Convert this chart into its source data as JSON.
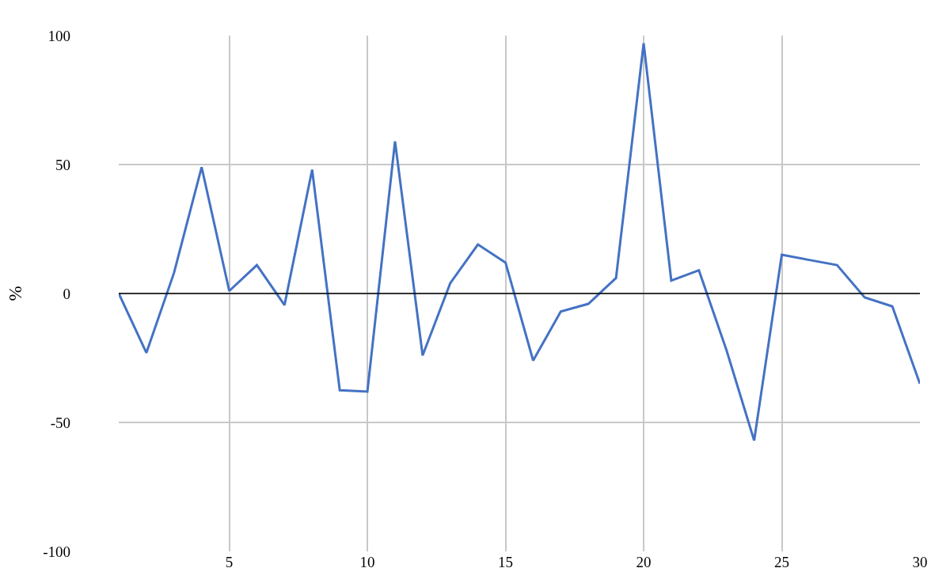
{
  "chart_data": {
    "type": "line",
    "ylabel": "%",
    "x": [
      1,
      2,
      3,
      4,
      5,
      6,
      7,
      8,
      9,
      10,
      11,
      12,
      13,
      14,
      15,
      16,
      17,
      18,
      19,
      20,
      21,
      22,
      23,
      24,
      25,
      26,
      27,
      28,
      29,
      30
    ],
    "series": [
      {
        "color": "#4472c4",
        "values": [
          0,
          -23,
          8,
          49,
          1,
          11,
          -4.5,
          48,
          -37.5,
          -38,
          59,
          -24,
          4,
          19,
          12,
          -26,
          -7,
          -4,
          6,
          97,
          5,
          9,
          -22,
          -57,
          15,
          13,
          11,
          -1.5,
          -5,
          -35
        ]
      }
    ],
    "xlim": [
      1,
      30
    ],
    "xticks": [
      5,
      10,
      15,
      20,
      25,
      30
    ],
    "ylim": [
      -100,
      100
    ],
    "yticks": [
      -100,
      -50,
      0,
      50,
      100
    ],
    "grid": true,
    "marker": "none",
    "line_style": "solid",
    "ref_lines": [
      {
        "axis": "y",
        "value": 0,
        "color": "#000000"
      }
    ]
  }
}
